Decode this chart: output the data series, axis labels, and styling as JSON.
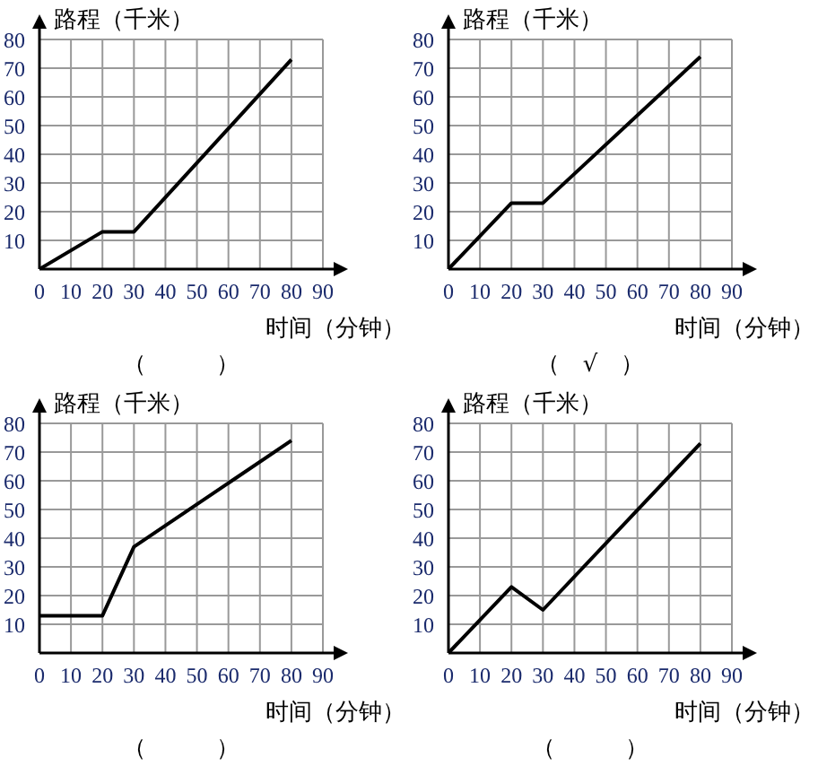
{
  "chart_data": [
    {
      "type": "line",
      "ylabel": "路程（千米）",
      "xlabel": "时间（分钟）",
      "annotations": [
        "（　　　）"
      ],
      "x": [
        0,
        20,
        30,
        80
      ],
      "values": [
        0,
        13,
        13,
        73
      ],
      "color": "#000000",
      "xlim": [
        0,
        90
      ],
      "ylim": [
        0,
        80
      ],
      "xticks": [
        0,
        10,
        20,
        30,
        40,
        50,
        60,
        70,
        80,
        90
      ],
      "yticks": [
        10,
        20,
        30,
        40,
        50,
        60,
        70,
        80
      ],
      "grid": true,
      "marker": "none",
      "line_style": "solid"
    },
    {
      "type": "line",
      "ylabel": "路程（千米）",
      "xlabel": "时间（分钟）",
      "annotations": [
        "（　√　）"
      ],
      "x": [
        0,
        20,
        30,
        80
      ],
      "values": [
        0,
        23,
        23,
        74
      ],
      "color": "#000000",
      "xlim": [
        0,
        90
      ],
      "ylim": [
        0,
        80
      ],
      "xticks": [
        0,
        10,
        20,
        30,
        40,
        50,
        60,
        70,
        80,
        90
      ],
      "yticks": [
        10,
        20,
        30,
        40,
        50,
        60,
        70,
        80
      ],
      "grid": true,
      "marker": "none",
      "line_style": "solid"
    },
    {
      "type": "line",
      "ylabel": "路程（千米）",
      "xlabel": "时间（分钟）",
      "annotations": [
        "（　　　）"
      ],
      "x": [
        0,
        20,
        30,
        80
      ],
      "values": [
        13,
        13,
        37,
        74
      ],
      "color": "#000000",
      "xlim": [
        0,
        90
      ],
      "ylim": [
        0,
        80
      ],
      "xticks": [
        0,
        10,
        20,
        30,
        40,
        50,
        60,
        70,
        80,
        90
      ],
      "yticks": [
        10,
        20,
        30,
        40,
        50,
        60,
        70,
        80
      ],
      "grid": true,
      "marker": "none",
      "line_style": "solid"
    },
    {
      "type": "line",
      "ylabel": "路程（千米）",
      "xlabel": "时间（分钟）",
      "annotations": [
        "（　　　）"
      ],
      "x": [
        0,
        20,
        30,
        80
      ],
      "values": [
        0,
        23,
        15,
        73
      ],
      "color": "#000000",
      "xlim": [
        0,
        90
      ],
      "ylim": [
        0,
        80
      ],
      "xticks": [
        0,
        10,
        20,
        30,
        40,
        50,
        60,
        70,
        80,
        90
      ],
      "yticks": [
        10,
        20,
        30,
        40,
        50,
        60,
        70,
        80
      ],
      "grid": true,
      "marker": "none",
      "line_style": "solid"
    }
  ]
}
